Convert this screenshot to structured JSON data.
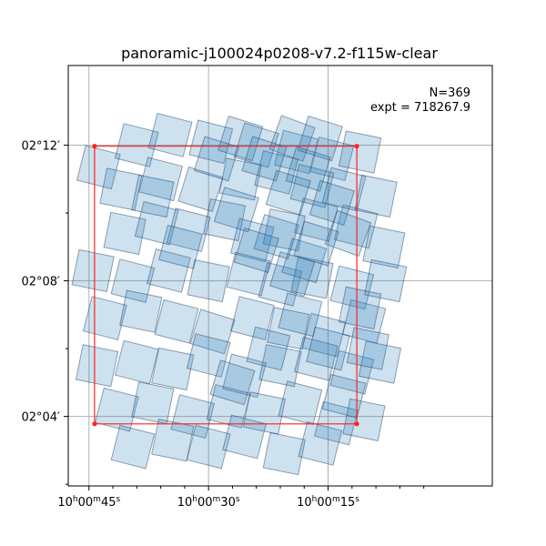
{
  "chart_data": {
    "type": "scatter",
    "title": "panoramic-j100024p0208-v7.2-f115w-clear",
    "annotations": {
      "count": "N=369",
      "exposure": "expt = 718267.9"
    },
    "x_axis": {
      "unit": "RA (seconds of 10h00m)",
      "tick_values": [
        45,
        30,
        15
      ],
      "tick_labels": [
        {
          "h": "10",
          "m": "00",
          "s": "45"
        },
        {
          "h": "10",
          "m": "00",
          "s": "30"
        },
        {
          "h": "10",
          "m": "00",
          "s": "15"
        }
      ],
      "minor_tick_values": [
        48,
        42,
        39,
        36,
        33,
        27,
        24,
        21,
        18,
        12,
        9,
        6,
        3
      ],
      "range": [
        47.6,
        -5.6
      ],
      "inverted": true
    },
    "y_axis": {
      "unit": "Dec (arcmin above 02deg)",
      "tick_values": [
        12,
        8,
        4
      ],
      "tick_labels": [
        "02°12′",
        "02°08′",
        "02°04′"
      ],
      "minor_tick_values": [
        10,
        6,
        2
      ],
      "range": [
        1.95,
        14.35
      ]
    },
    "grid": true,
    "footprint": {
      "color": "#ff2020",
      "corners": [
        [
          44.3,
          11.97
        ],
        [
          11.4,
          11.97
        ],
        [
          11.4,
          3.78
        ],
        [
          44.3,
          3.78
        ]
      ]
    },
    "exposure_tiles": {
      "color": "#1f77b4",
      "edge_color": "#17385a",
      "tile_size_arcmin": 1.05,
      "tiles": [
        [
          43.8,
          11.35,
          0.25
        ],
        [
          39.0,
          12.0,
          0.25
        ],
        [
          34.8,
          12.3,
          0.25
        ],
        [
          29.7,
          12.1,
          0.25
        ],
        [
          24.0,
          12.0,
          0.3
        ],
        [
          19.0,
          11.8,
          0.25
        ],
        [
          14.5,
          11.6,
          0.25
        ],
        [
          11.0,
          11.8,
          0.2
        ],
        [
          41.0,
          10.7,
          0.2
        ],
        [
          36.0,
          11.0,
          0.25
        ],
        [
          31.0,
          10.7,
          0.3
        ],
        [
          26.0,
          11.0,
          0.2
        ],
        [
          21.5,
          11.2,
          0.25
        ],
        [
          17.0,
          10.8,
          0.25
        ],
        [
          13.0,
          10.7,
          0.25
        ],
        [
          9.0,
          10.5,
          0.2
        ],
        [
          40.5,
          9.4,
          0.2
        ],
        [
          36.5,
          9.7,
          0.25
        ],
        [
          32.5,
          9.5,
          0.25
        ],
        [
          28.0,
          9.8,
          0.2
        ],
        [
          24.5,
          9.2,
          0.25
        ],
        [
          20.5,
          9.5,
          0.2
        ],
        [
          16.5,
          9.8,
          0.25
        ],
        [
          11.5,
          9.6,
          0.25
        ],
        [
          8.0,
          9.0,
          0.2
        ],
        [
          44.5,
          8.3,
          0.2
        ],
        [
          39.5,
          8.0,
          0.25
        ],
        [
          35.0,
          8.3,
          0.25
        ],
        [
          30.0,
          8.0,
          0.2
        ],
        [
          25.0,
          8.2,
          0.25
        ],
        [
          21.0,
          7.9,
          0.25
        ],
        [
          17.0,
          8.1,
          0.2
        ],
        [
          12.0,
          7.8,
          0.25
        ],
        [
          7.8,
          8.0,
          0.2
        ],
        [
          43.0,
          6.9,
          0.25
        ],
        [
          38.5,
          7.1,
          0.2
        ],
        [
          34.0,
          6.8,
          0.25
        ],
        [
          29.5,
          6.5,
          0.3
        ],
        [
          24.5,
          6.9,
          0.25
        ],
        [
          20.0,
          6.6,
          0.2
        ],
        [
          15.5,
          6.4,
          0.25
        ],
        [
          10.5,
          6.8,
          0.25
        ],
        [
          44.0,
          5.5,
          0.2
        ],
        [
          39.0,
          5.6,
          0.25
        ],
        [
          34.5,
          5.4,
          0.2
        ],
        [
          30.0,
          5.8,
          0.25
        ],
        [
          25.5,
          5.2,
          0.25
        ],
        [
          21.0,
          5.5,
          0.2
        ],
        [
          16.5,
          5.7,
          0.25
        ],
        [
          12.0,
          5.3,
          0.25
        ],
        [
          8.5,
          5.6,
          0.2
        ],
        [
          41.5,
          4.2,
          0.25
        ],
        [
          37.0,
          4.4,
          0.2
        ],
        [
          32.0,
          4.0,
          0.25
        ],
        [
          27.5,
          4.3,
          0.25
        ],
        [
          23.0,
          4.1,
          0.2
        ],
        [
          18.5,
          4.4,
          0.25
        ],
        [
          14.0,
          3.8,
          0.25
        ],
        [
          10.5,
          3.9,
          0.2
        ],
        [
          39.5,
          3.1,
          0.25
        ],
        [
          34.5,
          3.3,
          0.2
        ],
        [
          30.0,
          3.1,
          0.25
        ],
        [
          25.5,
          3.4,
          0.25
        ],
        [
          20.5,
          2.9,
          0.2
        ],
        [
          16.0,
          3.2,
          0.25
        ],
        [
          26.0,
          12.2,
          0.3
        ],
        [
          19.5,
          12.2,
          0.35
        ],
        [
          16.0,
          12.2,
          0.3
        ],
        [
          17.5,
          11.3,
          0.3
        ],
        [
          14.5,
          10.3,
          0.3
        ],
        [
          12.5,
          9.4,
          0.35
        ],
        [
          21.5,
          9.3,
          0.3
        ],
        [
          18.0,
          8.6,
          0.3
        ],
        [
          16.5,
          9.1,
          0.3
        ],
        [
          19.5,
          8.2,
          0.3
        ],
        [
          23.0,
          11.6,
          0.3
        ],
        [
          20.0,
          10.6,
          0.3
        ],
        [
          24.0,
          8.9,
          0.3
        ],
        [
          26.5,
          10.1,
          0.3
        ],
        [
          10.0,
          6.0,
          0.2
        ],
        [
          11.0,
          7.2,
          0.2
        ],
        [
          22.5,
          6.0,
          0.25
        ],
        [
          18.5,
          7.0,
          0.25
        ],
        [
          33.5,
          9.0,
          0.25
        ],
        [
          37.0,
          10.5,
          0.2
        ],
        [
          29.0,
          11.6,
          0.3
        ],
        [
          15.0,
          6.0,
          0.25
        ],
        [
          13.0,
          4.6,
          0.25
        ],
        [
          27.0,
          5.0,
          0.3
        ]
      ]
    }
  }
}
